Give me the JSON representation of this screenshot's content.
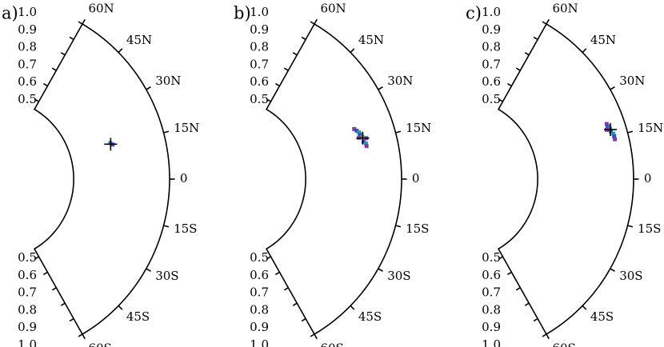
{
  "chart_data": [
    {
      "type": "polar-sector",
      "label": "a)",
      "rlim": [
        0.45,
        1.0
      ],
      "latlim": [
        -60,
        60
      ],
      "rticks": [
        0.5,
        0.6,
        0.7,
        0.8,
        0.9,
        {
          "value": 1,
          "label": "1.0"
        }
      ],
      "latticks": [
        {
          "value": 60,
          "label": "60N"
        },
        {
          "value": 45,
          "label": "45N"
        },
        {
          "value": 30,
          "label": "30N"
        },
        {
          "value": 15,
          "label": "15N"
        },
        0,
        {
          "value": -15,
          "label": "15S"
        },
        {
          "value": -30,
          "label": "30S"
        },
        {
          "value": -45,
          "label": "45S"
        },
        {
          "value": -60,
          "label": "60S"
        }
      ],
      "cells": [
        {
          "r": 0.69,
          "lat": 17,
          "color": "#20a0a0"
        },
        {
          "r": 0.7,
          "lat": 16,
          "color": "#3050c8"
        }
      ],
      "point": {
        "r": 0.69,
        "lat": 16.4
      }
    },
    {
      "type": "polar-sector",
      "label": "b)",
      "rlim": [
        0.45,
        1.0
      ],
      "latlim": [
        -60,
        60
      ],
      "rticks": [
        0.5,
        0.6,
        0.7,
        0.8,
        0.9,
        {
          "value": 1,
          "label": "1.0"
        }
      ],
      "latticks": [
        {
          "value": 60,
          "label": "60N"
        },
        {
          "value": 45,
          "label": "45N"
        },
        {
          "value": 30,
          "label": "30N"
        },
        {
          "value": 15,
          "label": "15N"
        },
        0,
        {
          "value": -15,
          "label": "15S"
        },
        {
          "value": -30,
          "label": "30S"
        },
        {
          "value": -45,
          "label": "45S"
        },
        {
          "value": -60,
          "label": "60S"
        }
      ],
      "cells": [
        {
          "r": 0.78,
          "lat": 21,
          "color": "#7b3fa0"
        },
        {
          "r": 0.79,
          "lat": 20,
          "color": "#3050c8"
        },
        {
          "r": 0.8,
          "lat": 19,
          "color": "#20a0a0"
        },
        {
          "r": 0.8,
          "lat": 18,
          "color": "#3050c8"
        },
        {
          "r": 0.81,
          "lat": 17,
          "color": "#40b060"
        },
        {
          "r": 0.81,
          "lat": 15,
          "color": "#3050c8"
        },
        {
          "r": 0.82,
          "lat": 14,
          "color": "#20a0a0"
        },
        {
          "r": 0.82,
          "lat": 13,
          "color": "#7b3fa0"
        },
        {
          "r": 0.79,
          "lat": 17,
          "color": "#7b3fa0"
        },
        {
          "r": 0.83,
          "lat": 16,
          "color": "#7b3fa0"
        }
      ],
      "point": {
        "r": 0.81,
        "lat": 16.4
      }
    },
    {
      "type": "polar-sector",
      "label": "c)",
      "rlim": [
        0.45,
        1.0
      ],
      "latlim": [
        -60,
        60
      ],
      "rticks": [
        0.5,
        0.6,
        0.7,
        0.8,
        0.9,
        {
          "value": 1,
          "label": "1.0"
        }
      ],
      "latticks": [
        {
          "value": 60,
          "label": "60N"
        },
        {
          "value": 45,
          "label": "45N"
        },
        {
          "value": 30,
          "label": "30N"
        },
        {
          "value": 15,
          "label": "15N"
        },
        0,
        {
          "value": -15,
          "label": "15S"
        },
        {
          "value": -30,
          "label": "30S"
        },
        {
          "value": -45,
          "label": "45S"
        },
        {
          "value": -60,
          "label": "60S"
        }
      ],
      "cells": [
        {
          "r": 0.9,
          "lat": 20,
          "color": "#7b3fa0"
        },
        {
          "r": 0.9,
          "lat": 19,
          "color": "#3050c8"
        },
        {
          "r": 0.91,
          "lat": 18,
          "color": "#20a0a0"
        },
        {
          "r": 0.91,
          "lat": 17,
          "color": "#3050c8"
        },
        {
          "r": 0.92,
          "lat": 16,
          "color": "#20a0a0"
        },
        {
          "r": 0.92,
          "lat": 15,
          "color": "#3050c8"
        },
        {
          "r": 0.92,
          "lat": 14,
          "color": "#7b3fa0"
        },
        {
          "r": 0.89,
          "lat": 18,
          "color": "#7b3fa0"
        }
      ],
      "point": {
        "r": 0.91,
        "lat": 17.7
      }
    }
  ]
}
